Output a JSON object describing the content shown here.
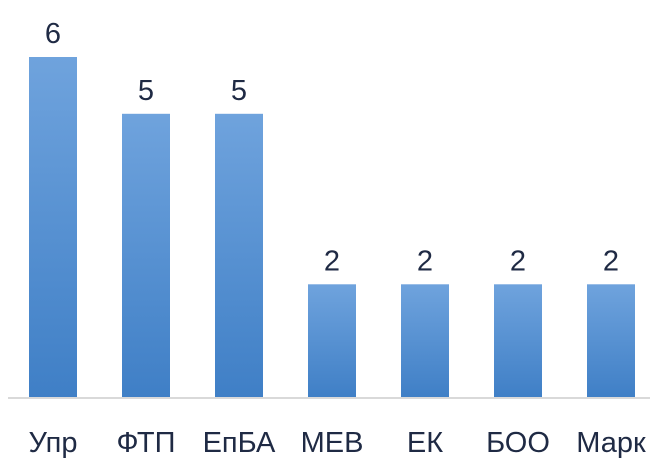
{
  "chart_data": {
    "type": "bar",
    "categories": [
      "Упр",
      "ФТП",
      "ЕпБА",
      "МЕВ",
      "ЕК",
      "БОО",
      "Марк"
    ],
    "values": [
      6,
      5,
      5,
      2,
      2,
      2,
      2
    ],
    "title": "",
    "xlabel": "",
    "ylabel": "",
    "ylim": [
      0,
      6
    ],
    "grid": false,
    "legend": "none",
    "data_labels": true,
    "colors": {
      "bar_top": "#6fa3dd",
      "bar_bottom": "#3f7fc6",
      "axis": "#d9d9d9",
      "text": "#1f2a44"
    }
  }
}
